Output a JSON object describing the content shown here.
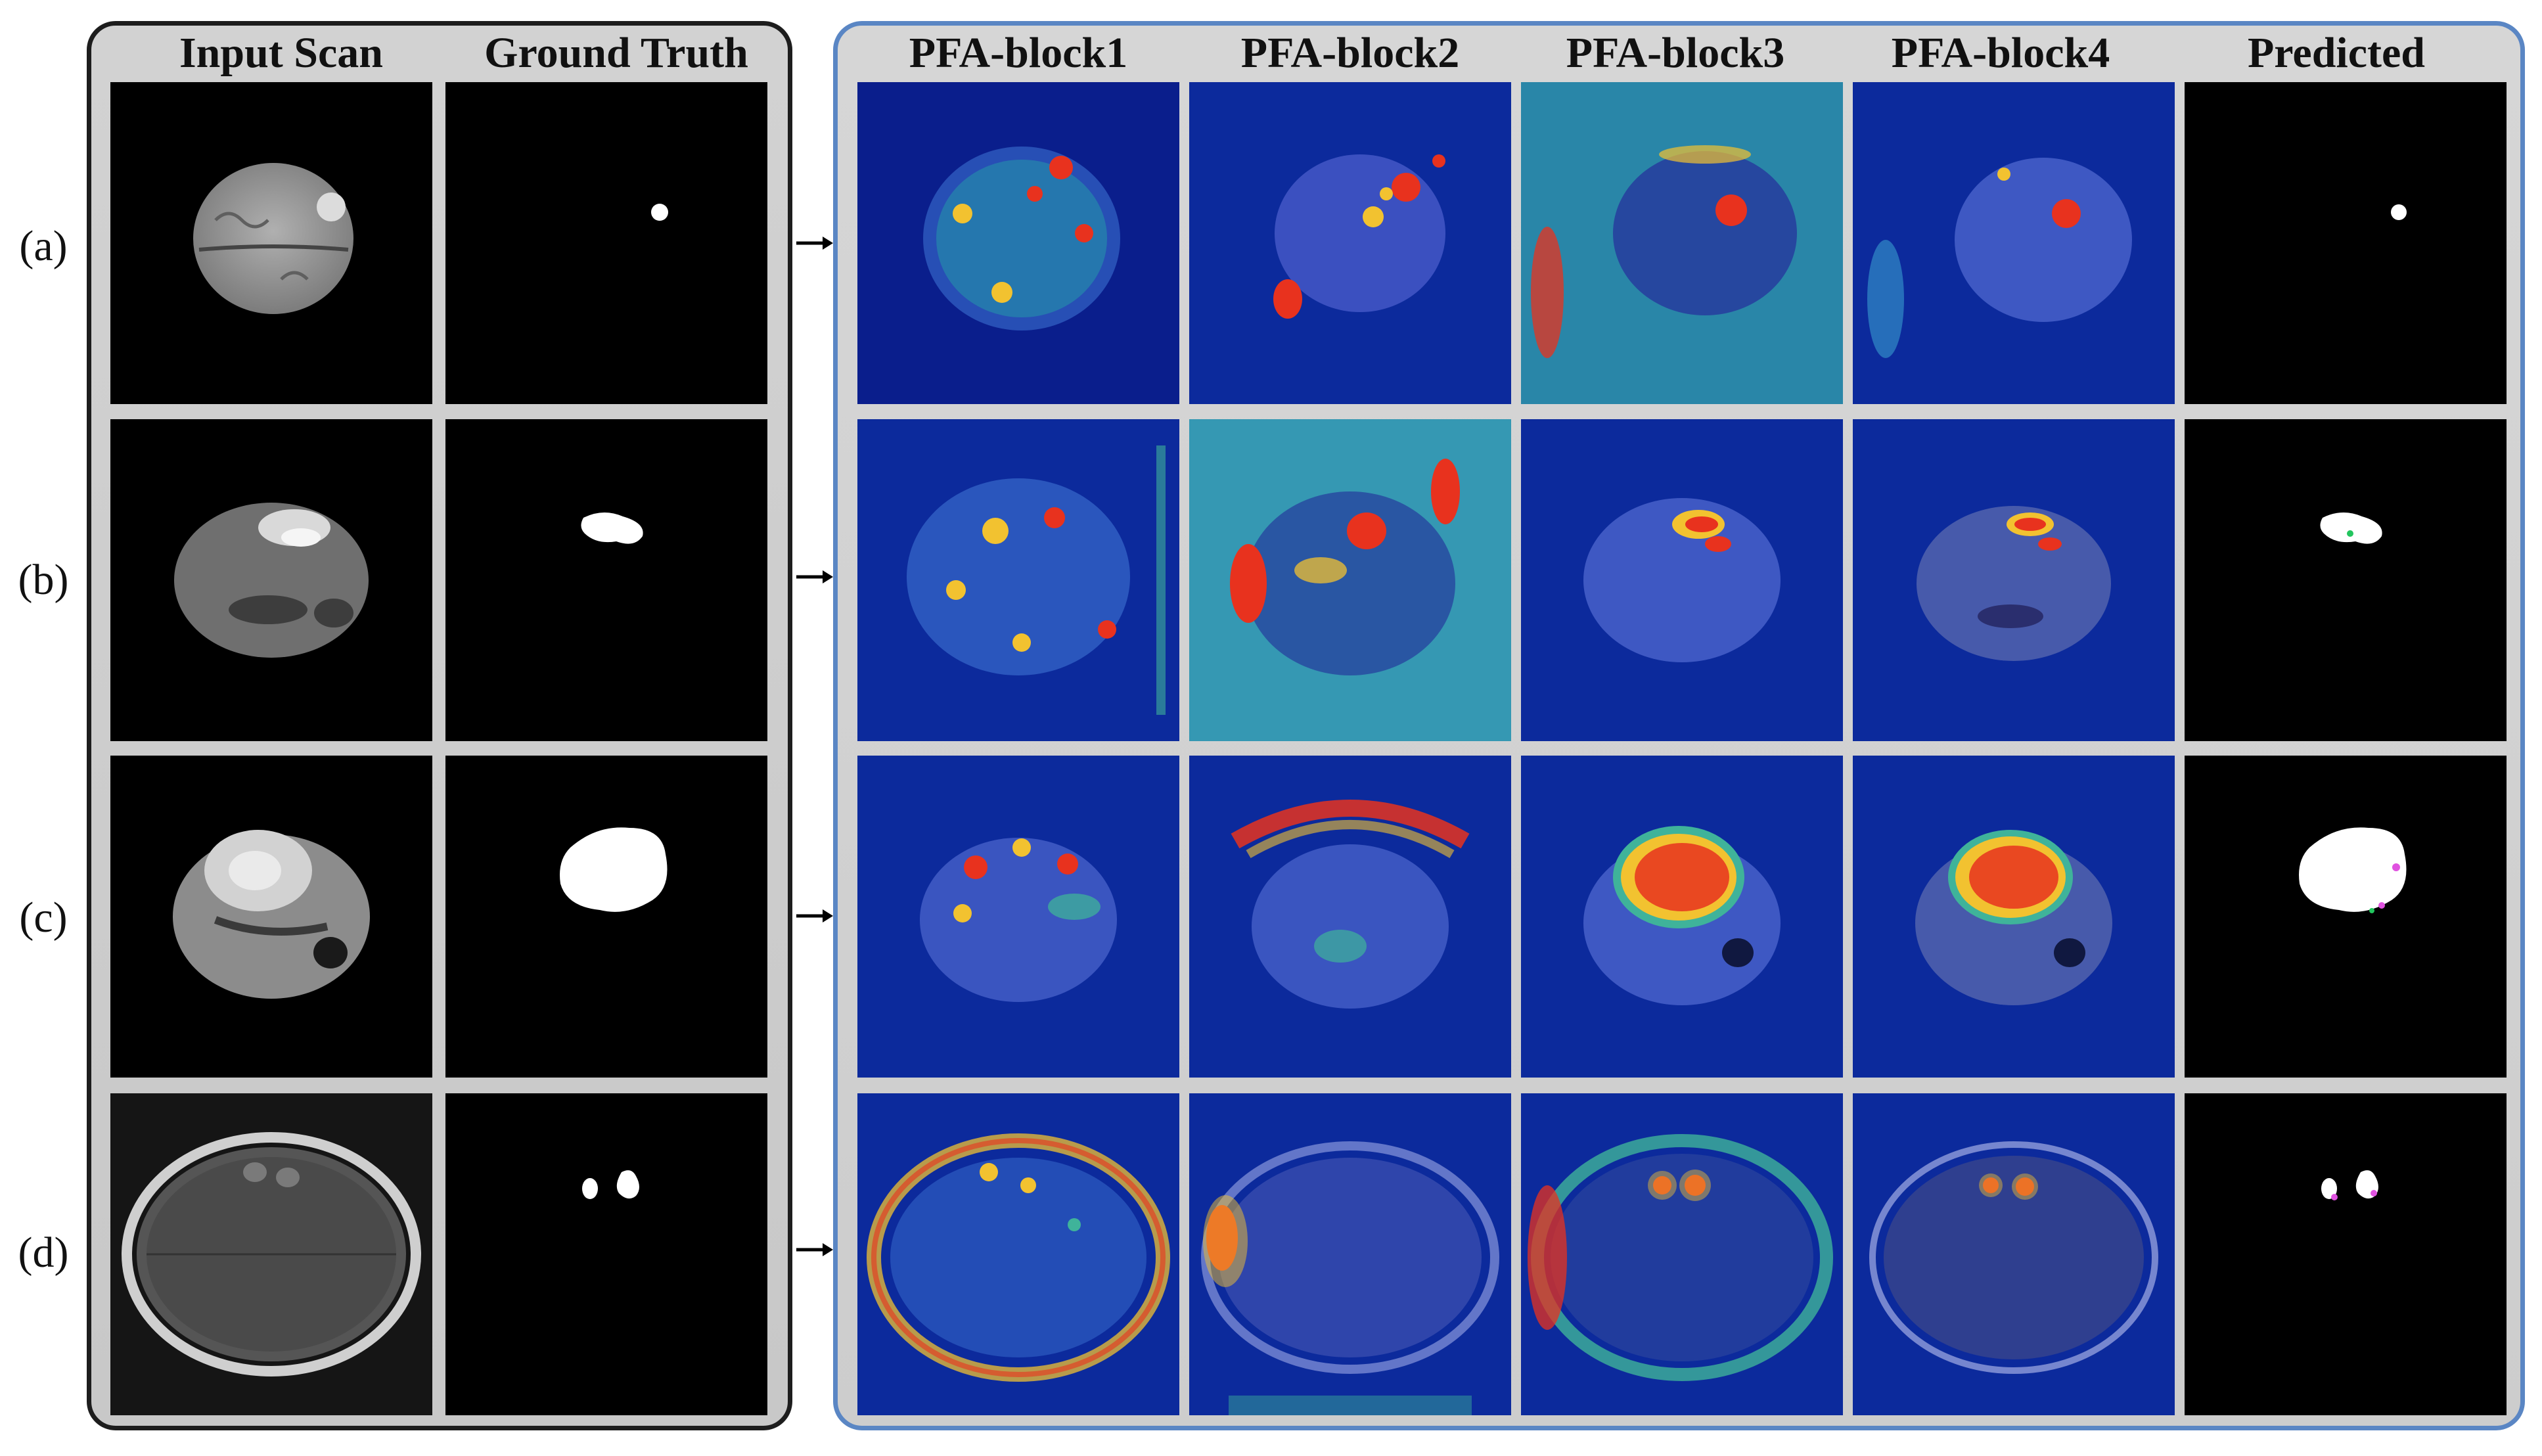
{
  "headers": {
    "input_scan": "Input Scan",
    "ground_truth": "Ground Truth",
    "pfa_block1": "PFA-block1",
    "pfa_block2": "PFA-block2",
    "pfa_block3": "PFA-block3",
    "pfa_block4": "PFA-block4",
    "predicted": "Predicted"
  },
  "rows": {
    "a": "(a)",
    "b": "(b)",
    "c": "(c)",
    "d": "(d)"
  },
  "colors": {
    "left_panel_border": "#1d1d1d",
    "right_panel_border": "#5a86c4",
    "heatmap_low": "#0a1e8c",
    "heatmap_high": "#e8321e",
    "prediction_overlay_green": "#22c55e",
    "prediction_overlay_magenta": "#e052e0"
  }
}
